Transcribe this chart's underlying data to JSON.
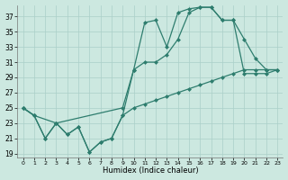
{
  "xlabel": "Humidex (Indice chaleur)",
  "bg_color": "#cce8e0",
  "grid_color": "#aacfc8",
  "line_color": "#2e7d6e",
  "xlim": [
    -0.5,
    23.5
  ],
  "ylim": [
    18.5,
    38.5
  ],
  "yticks": [
    19,
    21,
    23,
    25,
    27,
    29,
    31,
    33,
    35,
    37
  ],
  "xticks": [
    0,
    1,
    2,
    3,
    4,
    5,
    6,
    7,
    8,
    9,
    10,
    11,
    12,
    13,
    14,
    15,
    16,
    17,
    18,
    19,
    20,
    21,
    22,
    23
  ],
  "curve1_x": [
    0,
    1,
    2,
    3,
    4,
    5,
    6,
    7,
    8,
    9,
    10,
    11,
    12,
    13,
    14,
    15,
    16,
    17,
    18,
    19,
    20,
    21,
    22,
    23
  ],
  "curve1_y": [
    25.0,
    24.0,
    21.0,
    23.0,
    21.5,
    22.5,
    19.2,
    20.5,
    21.0,
    24.0,
    30.0,
    36.2,
    36.5,
    33.0,
    37.5,
    38.0,
    38.2,
    38.2,
    36.5,
    36.5,
    29.5,
    29.5,
    29.5,
    30.0
  ],
  "curve2_x": [
    0,
    1,
    2,
    3,
    4,
    5,
    6,
    7,
    8,
    9,
    10,
    11,
    12,
    13,
    14,
    15,
    16,
    17,
    18,
    19,
    20,
    21,
    22,
    23
  ],
  "curve2_y": [
    25.0,
    24.0,
    21.0,
    23.0,
    21.5,
    22.5,
    19.2,
    20.5,
    21.0,
    24.0,
    25.0,
    25.5,
    26.0,
    26.5,
    27.0,
    27.5,
    28.0,
    28.5,
    29.0,
    29.5,
    30.0,
    30.0,
    30.0,
    30.0
  ],
  "curve3_x": [
    0,
    1,
    3,
    9,
    10,
    11,
    12,
    13,
    14,
    15,
    16,
    17,
    18,
    19,
    20,
    21,
    22,
    23
  ],
  "curve3_y": [
    25.0,
    24.0,
    23.0,
    25.0,
    30.0,
    31.0,
    31.0,
    32.0,
    34.0,
    37.5,
    38.2,
    38.2,
    36.5,
    36.5,
    34.0,
    31.5,
    30.0,
    30.0
  ]
}
